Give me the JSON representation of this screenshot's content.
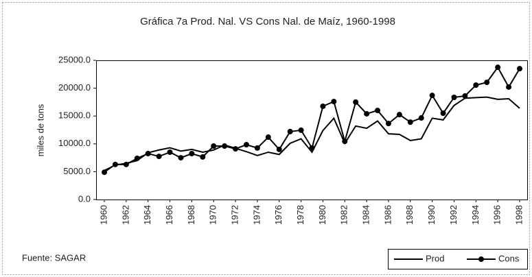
{
  "chart_data": {
    "type": "line",
    "title": "Gráfica 7a Prod. Nal. VS Cons  Nal. de Maíz, 1960-1998",
    "y_label": "miles de tons",
    "source": "Fuente: SAGAR",
    "x": [
      1960,
      1961,
      1962,
      1963,
      1964,
      1965,
      1966,
      1967,
      1968,
      1969,
      1970,
      1971,
      1972,
      1973,
      1974,
      1975,
      1976,
      1977,
      1978,
      1979,
      1980,
      1981,
      1982,
      1983,
      1984,
      1985,
      1986,
      1987,
      1988,
      1989,
      1990,
      1991,
      1992,
      1993,
      1994,
      1995,
      1996,
      1997,
      1998
    ],
    "series": [
      {
        "name": "Prod",
        "color": "#000000",
        "marker": false,
        "values": [
          5200,
          6200,
          6500,
          7000,
          8400,
          8900,
          9300,
          8700,
          9000,
          8500,
          8900,
          9800,
          9200,
          8600,
          7900,
          8500,
          8100,
          10100,
          10900,
          8500,
          12400,
          14600,
          10100,
          13200,
          12800,
          14100,
          11800,
          11700,
          10600,
          10900,
          14600,
          14300,
          16900,
          18200,
          18300,
          18400,
          18000,
          18100,
          16400
        ]
      },
      {
        "name": "Cons",
        "color": "#000000",
        "marker": true,
        "values": [
          4900,
          6300,
          6300,
          7400,
          8250,
          7750,
          8500,
          7500,
          8250,
          7650,
          9600,
          9600,
          9100,
          9850,
          9250,
          11200,
          9000,
          12200,
          12450,
          9250,
          16750,
          17600,
          10450,
          17500,
          15400,
          16000,
          13650,
          15250,
          13900,
          14650,
          18700,
          15500,
          18350,
          18600,
          20550,
          21050,
          23750,
          20200,
          23500
        ]
      }
    ],
    "xlim": [
      1960,
      1998
    ],
    "xticks": [
      1960,
      1962,
      1964,
      1966,
      1968,
      1970,
      1972,
      1974,
      1976,
      1978,
      1980,
      1982,
      1984,
      1986,
      1988,
      1990,
      1992,
      1994,
      1996,
      1998
    ],
    "ylim": [
      0,
      25000
    ],
    "yticks": [
      {
        "value": 0,
        "label": "0.0"
      },
      {
        "value": 5000,
        "label": "5000.0"
      },
      {
        "value": 10000,
        "label": "10000.0"
      },
      {
        "value": 15000,
        "label": "15000.0"
      },
      {
        "value": 20000,
        "label": "20000.0"
      },
      {
        "value": 25000,
        "label": "25000.0"
      }
    ],
    "grid": false,
    "legend": "lower right"
  }
}
